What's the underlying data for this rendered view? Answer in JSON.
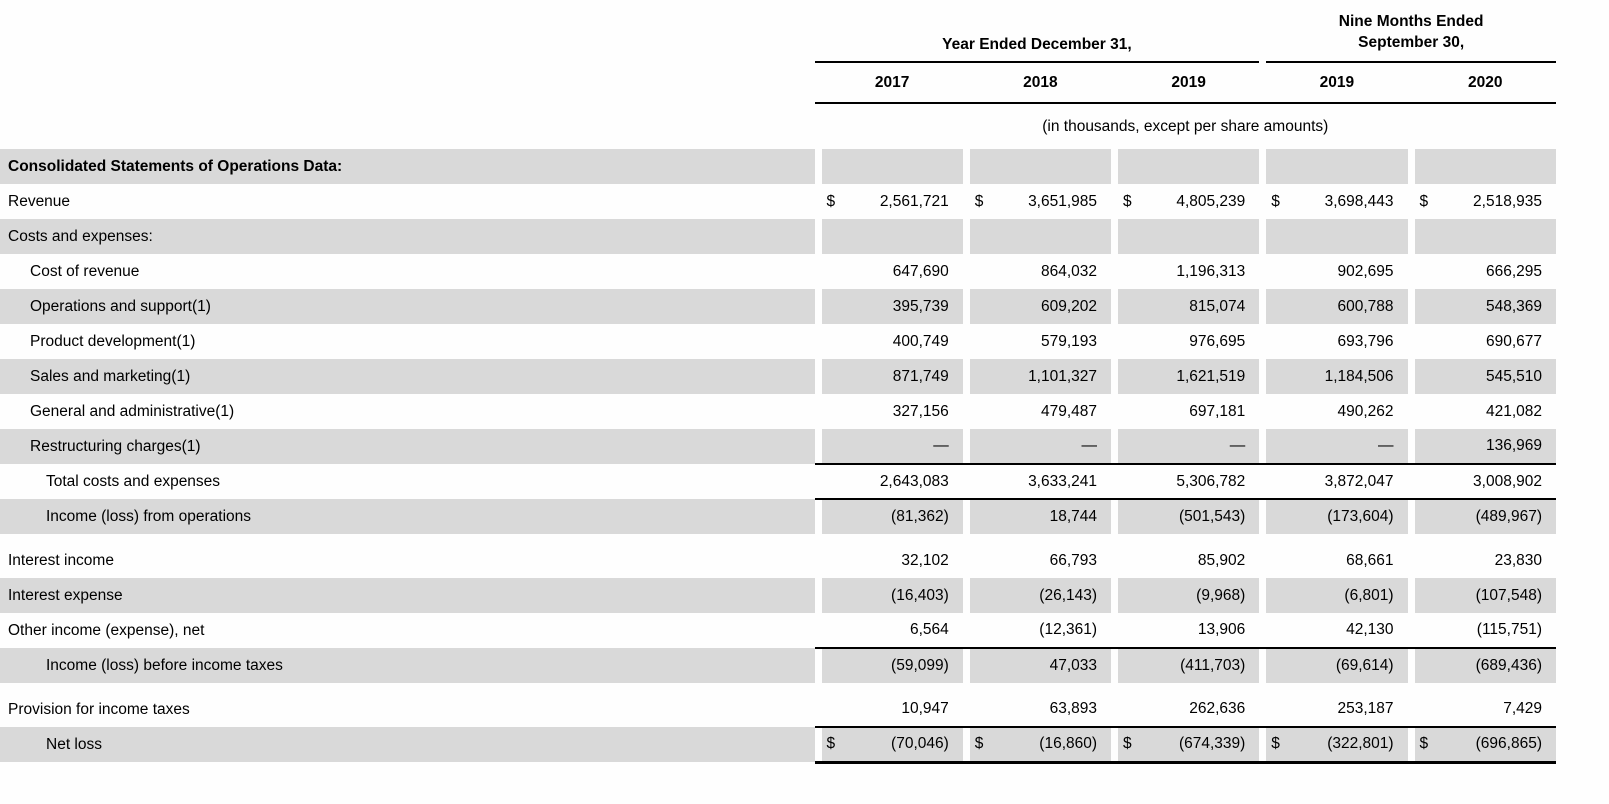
{
  "page": {
    "background_color": "#fefefe",
    "shade_color": "#d9d9d9",
    "line_color": "#000000"
  },
  "table": {
    "group_headers": [
      {
        "label": "Year Ended December 31,"
      },
      {
        "label": "Nine Months Ended September 30,"
      }
    ],
    "column_years": [
      "2017",
      "2018",
      "2019",
      "2019",
      "2020"
    ],
    "units_note": "(in thousands, except per share amounts)",
    "currency_symbol": "$",
    "rows": [
      {
        "label": "Consolidated Statements of Operations Data:",
        "indent": 0,
        "bold": true,
        "shaded": true,
        "values": [
          "",
          "",
          "",
          "",
          ""
        ]
      },
      {
        "label": "Revenue",
        "indent": 0,
        "dollar": true,
        "values": [
          "2,561,721",
          "3,651,985",
          "4,805,239",
          "3,698,443",
          "2,518,935"
        ]
      },
      {
        "label": "Costs and expenses:",
        "indent": 0,
        "shaded": true,
        "values": [
          "",
          "",
          "",
          "",
          ""
        ]
      },
      {
        "label": "Cost of revenue",
        "indent": 1,
        "values": [
          "647,690",
          "864,032",
          "1,196,313",
          "902,695",
          "666,295"
        ]
      },
      {
        "label": "Operations and support(1)",
        "indent": 1,
        "shaded": true,
        "values": [
          "395,739",
          "609,202",
          "815,074",
          "600,788",
          "548,369"
        ]
      },
      {
        "label": "Product development(1)",
        "indent": 1,
        "values": [
          "400,749",
          "579,193",
          "976,695",
          "693,796",
          "690,677"
        ]
      },
      {
        "label": "Sales and marketing(1)",
        "indent": 1,
        "shaded": true,
        "values": [
          "871,749",
          "1,101,327",
          "1,621,519",
          "1,184,506",
          "545,510"
        ]
      },
      {
        "label": "General and administrative(1)",
        "indent": 1,
        "values": [
          "327,156",
          "479,487",
          "697,181",
          "490,262",
          "421,082"
        ]
      },
      {
        "label": "Restructuring charges(1)",
        "indent": 1,
        "shaded": true,
        "values": [
          "—",
          "—",
          "—",
          "—",
          "136,969"
        ]
      },
      {
        "label": "Total costs and expenses",
        "indent": 2,
        "border_top": true,
        "values": [
          "2,643,083",
          "3,633,241",
          "5,306,782",
          "3,872,047",
          "3,008,902"
        ]
      },
      {
        "label": "Income (loss) from operations",
        "indent": 2,
        "shaded": true,
        "border_top": true,
        "spacer_after": true,
        "values": [
          "(81,362)",
          "18,744",
          "(501,543)",
          "(173,604)",
          "(489,967)"
        ]
      },
      {
        "label": "Interest income",
        "indent": 0,
        "values": [
          "32,102",
          "66,793",
          "85,902",
          "68,661",
          "23,830"
        ]
      },
      {
        "label": "Interest expense",
        "indent": 0,
        "shaded": true,
        "values": [
          "(16,403)",
          "(26,143)",
          "(9,968)",
          "(6,801)",
          "(107,548)"
        ]
      },
      {
        "label": "Other income (expense), net",
        "indent": 0,
        "values": [
          "6,564",
          "(12,361)",
          "13,906",
          "42,130",
          "(115,751)"
        ]
      },
      {
        "label": "Income (loss) before income taxes",
        "indent": 2,
        "shaded": true,
        "border_top": true,
        "spacer_after": true,
        "values": [
          "(59,099)",
          "47,033",
          "(411,703)",
          "(69,614)",
          "(689,436)"
        ]
      },
      {
        "label": "Provision for income taxes",
        "indent": 0,
        "values": [
          "10,947",
          "63,893",
          "262,636",
          "253,187",
          "7,429"
        ]
      },
      {
        "label": "Net loss",
        "indent": 2,
        "shaded": true,
        "dollar": true,
        "border_top": true,
        "border_bottom": true,
        "values": [
          "(70,046)",
          "(16,860)",
          "(674,339)",
          "(322,801)",
          "(696,865)"
        ]
      }
    ]
  }
}
